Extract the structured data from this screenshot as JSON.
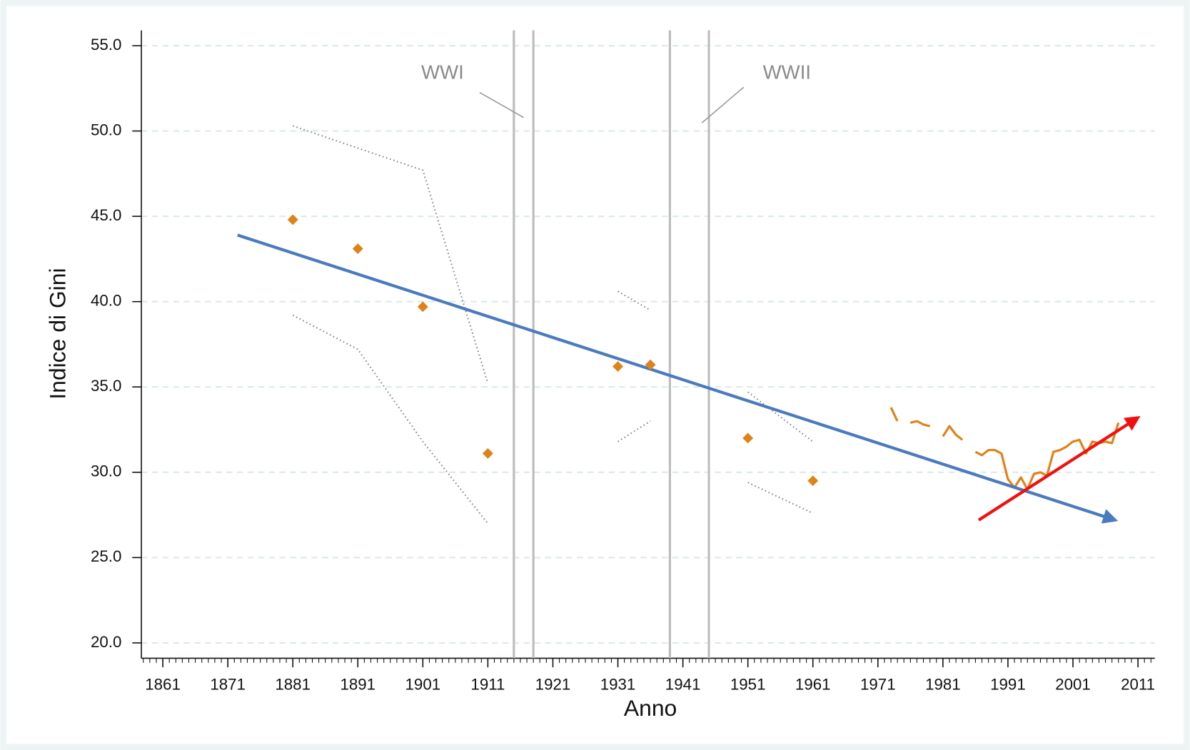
{
  "chart_data": {
    "type": "scatter",
    "x_label": "Anno",
    "y_label": "Indice di Gini",
    "xlim": [
      1857.7,
      2013.6
    ],
    "ylim": [
      19.1,
      55.9
    ],
    "xticks": [
      1861,
      1871,
      1881,
      1891,
      1901,
      1911,
      1921,
      1931,
      1941,
      1951,
      1961,
      1971,
      1981,
      1991,
      2001,
      2011
    ],
    "xminor": 1,
    "yticks": [
      {
        "value": 20,
        "label": "20.0"
      },
      {
        "value": 25,
        "label": "25.0"
      },
      {
        "value": 30,
        "label": "30.0"
      },
      {
        "value": 35,
        "label": "35.0"
      },
      {
        "value": 40,
        "label": "40.0"
      },
      {
        "value": 45,
        "label": "45.0"
      },
      {
        "value": 50,
        "label": "50.0"
      },
      {
        "value": 55,
        "label": "55.0"
      }
    ],
    "grid": true,
    "points": {
      "color": "#e0821a",
      "x": [
        1881,
        1891,
        1901,
        1911,
        1931,
        1936,
        1951,
        1961
      ],
      "values": [
        44.8,
        43.1,
        39.7,
        31.1,
        36.2,
        36.3,
        32.0,
        29.5
      ]
    },
    "ci_upper": {
      "color": "#888888",
      "x": [
        1881,
        1891,
        1901,
        1911,
        1921,
        1931,
        1936,
        1941,
        1951,
        1961
      ],
      "values": [
        50.3,
        49.0,
        47.7,
        35.2,
        null,
        40.6,
        39.5,
        null,
        34.7,
        31.8
      ]
    },
    "ci_lower": {
      "color": "#888888",
      "x": [
        1881,
        1891,
        1901,
        1911,
        1921,
        1931,
        1936,
        1941,
        1951,
        1961
      ],
      "values": [
        39.2,
        37.2,
        31.8,
        27.0,
        null,
        31.8,
        33.0,
        null,
        29.4,
        27.6
      ]
    },
    "line": {
      "color": "#e0821a",
      "x": [
        1973,
        1974,
        1975,
        1976,
        1977,
        1978,
        1979,
        1980,
        1981,
        1982,
        1983,
        1984,
        1985,
        1986,
        1987,
        1988,
        1989,
        1990,
        1991,
        1992,
        1993,
        1994,
        1995,
        1996,
        1997,
        1998,
        1999,
        2000,
        2001,
        2002,
        2003,
        2004,
        2005,
        2006,
        2007,
        2008
      ],
      "values": [
        33.8,
        33.0,
        null,
        32.9,
        33.0,
        32.8,
        32.7,
        null,
        32.1,
        32.7,
        32.2,
        31.9,
        null,
        31.2,
        31.0,
        31.3,
        31.3,
        31.1,
        29.6,
        29.1,
        29.7,
        29.0,
        29.9,
        30.0,
        29.8,
        31.2,
        31.3,
        31.5,
        31.8,
        31.9,
        31.1,
        31.8,
        31.7,
        31.8,
        31.7,
        32.9
      ]
    },
    "trend": {
      "color": "#4a7bbd",
      "x": [
        1872.5,
        2007.5
      ],
      "values": [
        43.9,
        27.2
      ]
    },
    "trend_recent": {
      "color": "#f01010",
      "x": [
        1986.5,
        2011
      ],
      "values": [
        27.2,
        33.2
      ]
    },
    "events": [
      1915,
      1918,
      1939,
      1945
    ],
    "annotations": [
      {
        "text": "WWI"
      },
      {
        "text": "WWII"
      }
    ]
  }
}
